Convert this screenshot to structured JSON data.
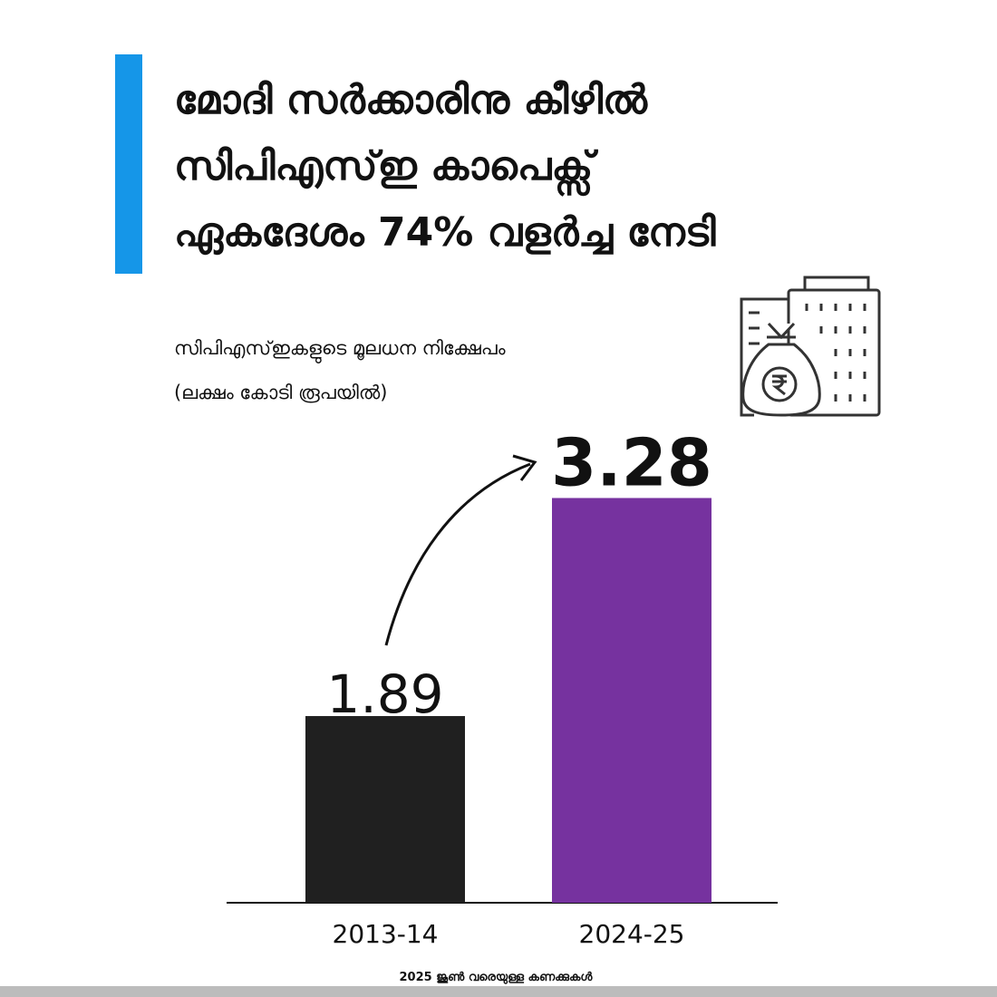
{
  "chart_data": {
    "type": "bar",
    "title": [
      "മോദി സർക്കാരിനു കീഴിൽ",
      "സിപിഎസ്ഇ കാപെക്സ്",
      "ഏകദേശം 74% വളർച്ച നേടി"
    ],
    "subtitle": [
      "സിപിഎസ്ഇകളുടെ മൂലധന നിക്ഷേപം",
      "(ലക്ഷം കോടി രൂപയിൽ)"
    ],
    "categories": [
      "2013-14",
      "2024-25"
    ],
    "values": [
      1.89,
      3.28
    ],
    "colors": [
      "#202020",
      "#76329f"
    ],
    "ylim": [
      0.7,
      3.3
    ],
    "note": "2025 ജൂൺ വരെയുള്ള കണക്കുകൾ"
  }
}
